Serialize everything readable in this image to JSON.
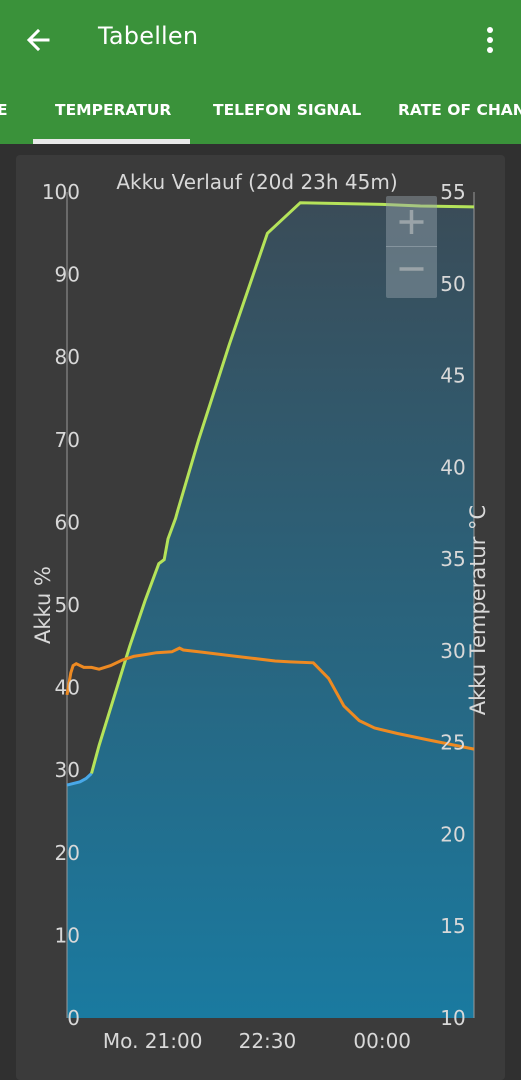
{
  "app": {
    "title": "Tabellen"
  },
  "tabs": [
    {
      "label": "E"
    },
    {
      "label": "TEMPERATUR",
      "active": true
    },
    {
      "label": "TELEFON SIGNAL"
    },
    {
      "label": "RATE OF CHAN"
    }
  ],
  "icons": {
    "back": "arrow-left-icon",
    "menu": "more-vert-icon",
    "zoom_in": "plus-icon",
    "zoom_out": "minus-icon"
  },
  "colors": {
    "appbar": "#3a923a",
    "battery_line": "#b5e35a",
    "battery_fill_top": "#3a4c58",
    "battery_fill_bottom": "#1a7aa0",
    "battery_start_line": "#48a8e8",
    "temperature_line": "#ee8a22"
  },
  "chart_data": {
    "type": "line",
    "title": "Akku Verlauf (20d 23h 45m)",
    "ylabel": "Akku %",
    "y2label": "Akku Temperatur °C",
    "ylim": [
      0,
      100
    ],
    "y2lim": [
      10,
      55
    ],
    "yticks": [
      "0",
      "10",
      "20",
      "30",
      "40",
      "50",
      "60",
      "70",
      "80",
      "90",
      "100"
    ],
    "y2ticks": [
      "10",
      "15",
      "20",
      "25",
      "30",
      "35",
      "40",
      "45",
      "50",
      "55"
    ],
    "xticks": [
      {
        "label": "Mo. 21:00",
        "t": 21.0
      },
      {
        "label": "22:30",
        "t": 22.5
      },
      {
        "label": "00:00",
        "t": 24.0
      }
    ],
    "xlim": [
      19.88,
      25.2
    ],
    "grid": false,
    "series": [
      {
        "axis": "left",
        "points": [
          [
            19.88,
            28.2
          ],
          [
            20.05,
            28.6
          ],
          [
            20.13,
            29
          ],
          [
            20.2,
            29.6
          ],
          [
            20.3,
            33
          ],
          [
            20.5,
            39
          ],
          [
            20.7,
            45
          ],
          [
            20.9,
            50.5
          ],
          [
            21.08,
            55
          ],
          [
            21.15,
            55.5
          ],
          [
            21.2,
            58
          ],
          [
            21.3,
            60.5
          ],
          [
            21.33,
            61.5
          ],
          [
            21.6,
            70
          ],
          [
            22,
            81.5
          ],
          [
            22.5,
            95
          ],
          [
            22.93,
            98.7
          ],
          [
            23.5,
            98.6
          ],
          [
            24,
            98.5
          ],
          [
            24.5,
            98.3
          ],
          [
            25.2,
            98.2
          ]
        ]
      },
      {
        "axis": "right",
        "points": [
          [
            19.88,
            27.6
          ],
          [
            19.93,
            28.8
          ],
          [
            19.96,
            29.2
          ],
          [
            20.0,
            29.3
          ],
          [
            20.1,
            29.1
          ],
          [
            20.2,
            29.1
          ],
          [
            20.3,
            29
          ],
          [
            20.45,
            29.2
          ],
          [
            20.6,
            29.5
          ],
          [
            20.75,
            29.7
          ],
          [
            20.9,
            29.8
          ],
          [
            21.05,
            29.9
          ],
          [
            21.25,
            29.95
          ],
          [
            21.35,
            30.15
          ],
          [
            21.4,
            30.05
          ],
          [
            21.6,
            29.95
          ],
          [
            21.8,
            29.85
          ],
          [
            22.0,
            29.75
          ],
          [
            22.3,
            29.6
          ],
          [
            22.6,
            29.45
          ],
          [
            22.8,
            29.4
          ],
          [
            23.1,
            29.35
          ],
          [
            23.3,
            28.5
          ],
          [
            23.5,
            27
          ],
          [
            23.7,
            26.2
          ],
          [
            23.9,
            25.8
          ],
          [
            24.2,
            25.5
          ],
          [
            24.6,
            25.15
          ],
          [
            25.2,
            24.65
          ]
        ]
      }
    ]
  }
}
